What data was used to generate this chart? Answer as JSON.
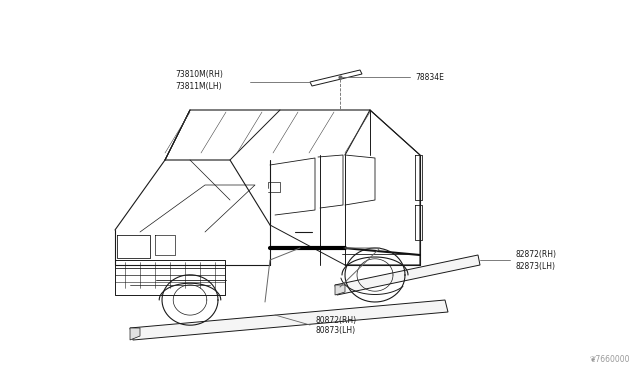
{
  "bg_color": "#ffffff",
  "line_color": "#1a1a1a",
  "label_color": "#1a1a1a",
  "leader_color": "#666666",
  "fig_width": 6.4,
  "fig_height": 3.72,
  "dpi": 100,
  "watermark": "❦7660000",
  "labels": {
    "part1_line1": "73810M(RH)",
    "part1_line2": "73811M(LH)",
    "part2": "78834E",
    "part3_line1": "82872(RH)",
    "part3_line2": "82873(LH)",
    "part4_line1": "80872(RH)",
    "part4_line2": "80873(LH)"
  },
  "font_size_labels": 5.5,
  "font_size_watermark": 5.5
}
